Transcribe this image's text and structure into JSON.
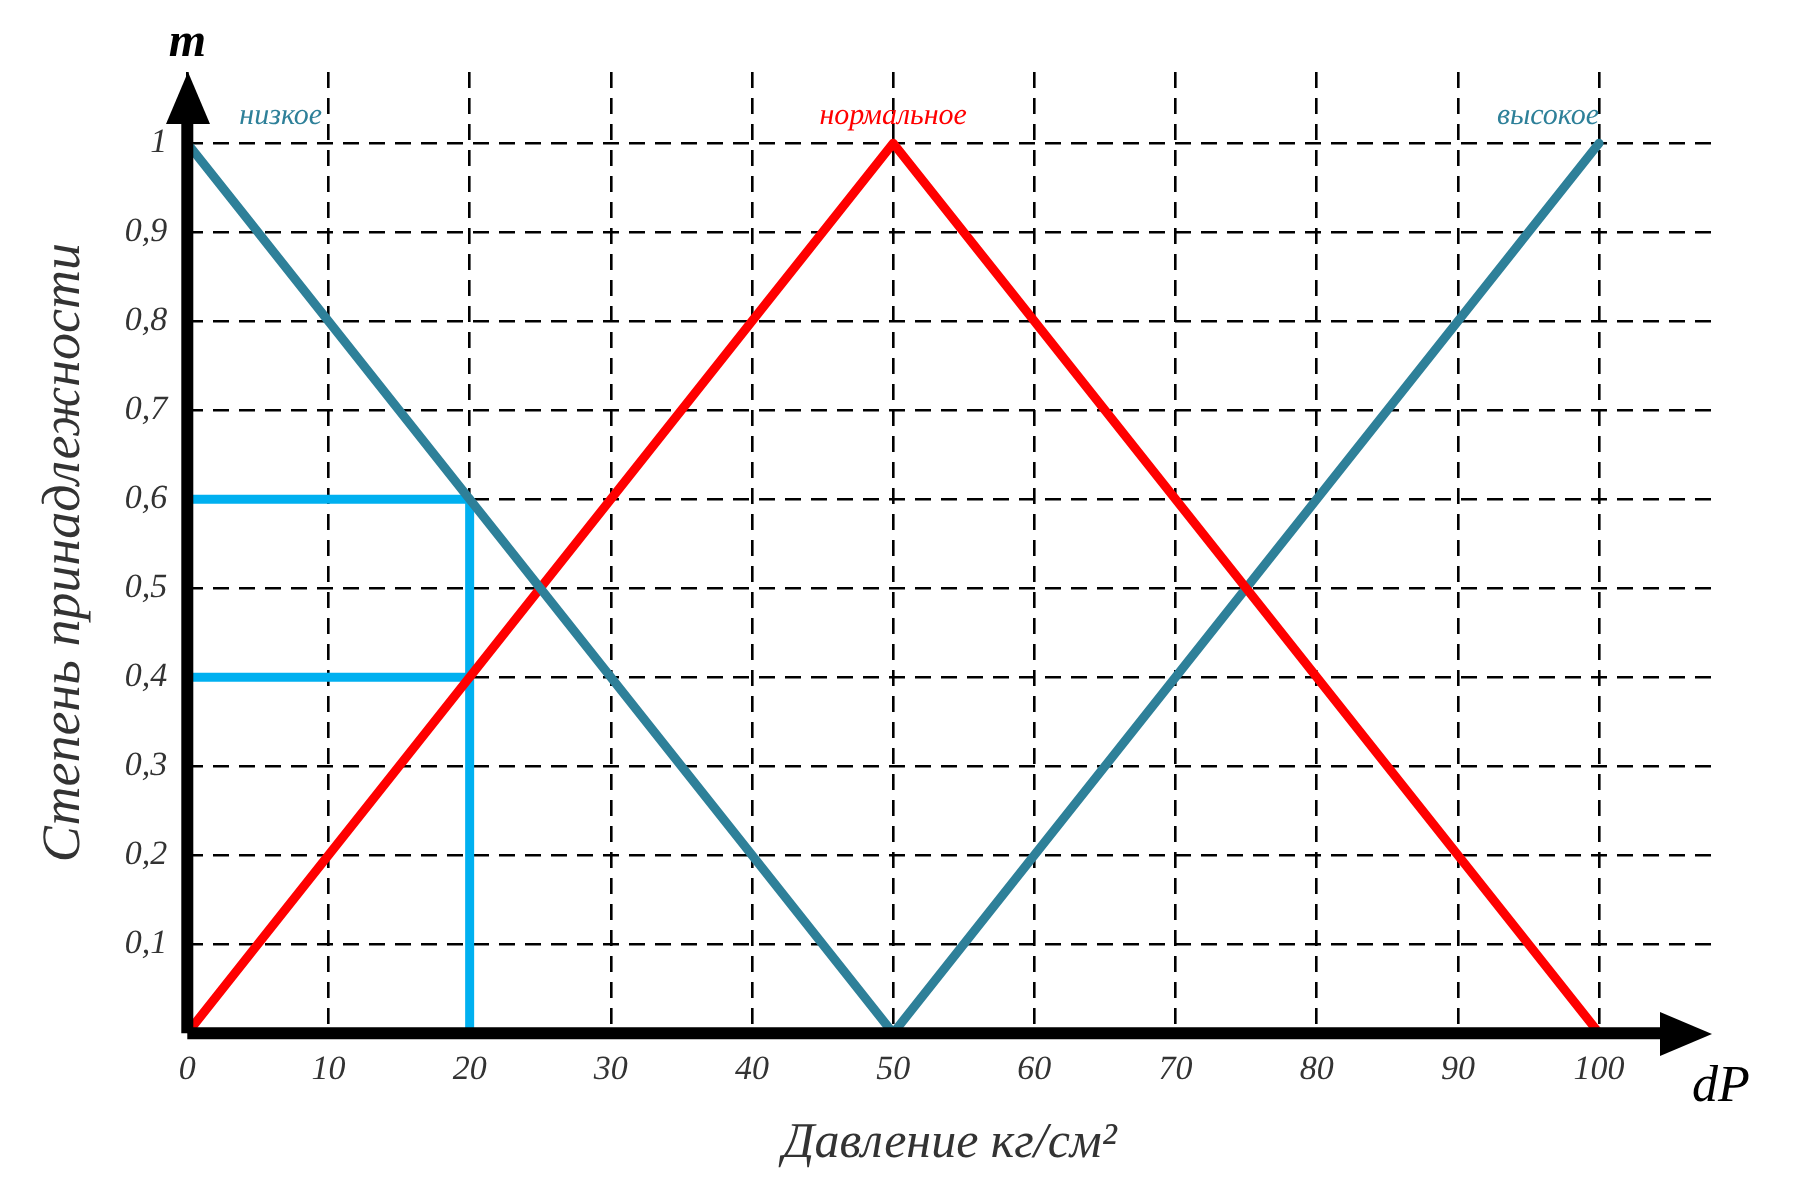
{
  "chart_data": {
    "type": "line",
    "xlabel": "Давление кг/см²",
    "ylabel": "Степень принадлежности",
    "annotations": [
      "m",
      "dP"
    ],
    "xlim": [
      0,
      108
    ],
    "ylim": [
      0,
      1.08
    ],
    "xticks": [
      0,
      10,
      20,
      30,
      40,
      50,
      60,
      70,
      80,
      90,
      100
    ],
    "yticks": [
      {
        "value": 0.1,
        "label": "0,1"
      },
      {
        "value": 0.2,
        "label": "0,2"
      },
      {
        "value": 0.3,
        "label": "0,3"
      },
      {
        "value": 0.4,
        "label": "0,4"
      },
      {
        "value": 0.5,
        "label": "0,5"
      },
      {
        "value": 0.6,
        "label": "0,6"
      },
      {
        "value": 0.7,
        "label": "0,7"
      },
      {
        "value": 0.8,
        "label": "0,8"
      },
      {
        "value": 0.9,
        "label": "0,9"
      },
      1
    ],
    "grid": true,
    "marker": "none",
    "series": [
      {
        "name": "низкое",
        "color": "#2e8099",
        "x": [
          0,
          50
        ],
        "values": [
          1,
          0
        ]
      },
      {
        "name": "нормальное",
        "color": "#ff0000",
        "x": [
          0,
          50,
          100
        ],
        "values": [
          0,
          1,
          0
        ]
      },
      {
        "name": "высокое",
        "color": "#2e8099",
        "x": [
          50,
          100
        ],
        "values": [
          0,
          1
        ]
      },
      {
        "color": "#00b0f0",
        "x": [
          0,
          20,
          20
        ],
        "values": [
          0.6,
          0.6,
          0
        ]
      },
      {
        "color": "#00b0f0",
        "x": [
          0,
          20
        ],
        "values": [
          0.4,
          0.4
        ]
      }
    ]
  }
}
